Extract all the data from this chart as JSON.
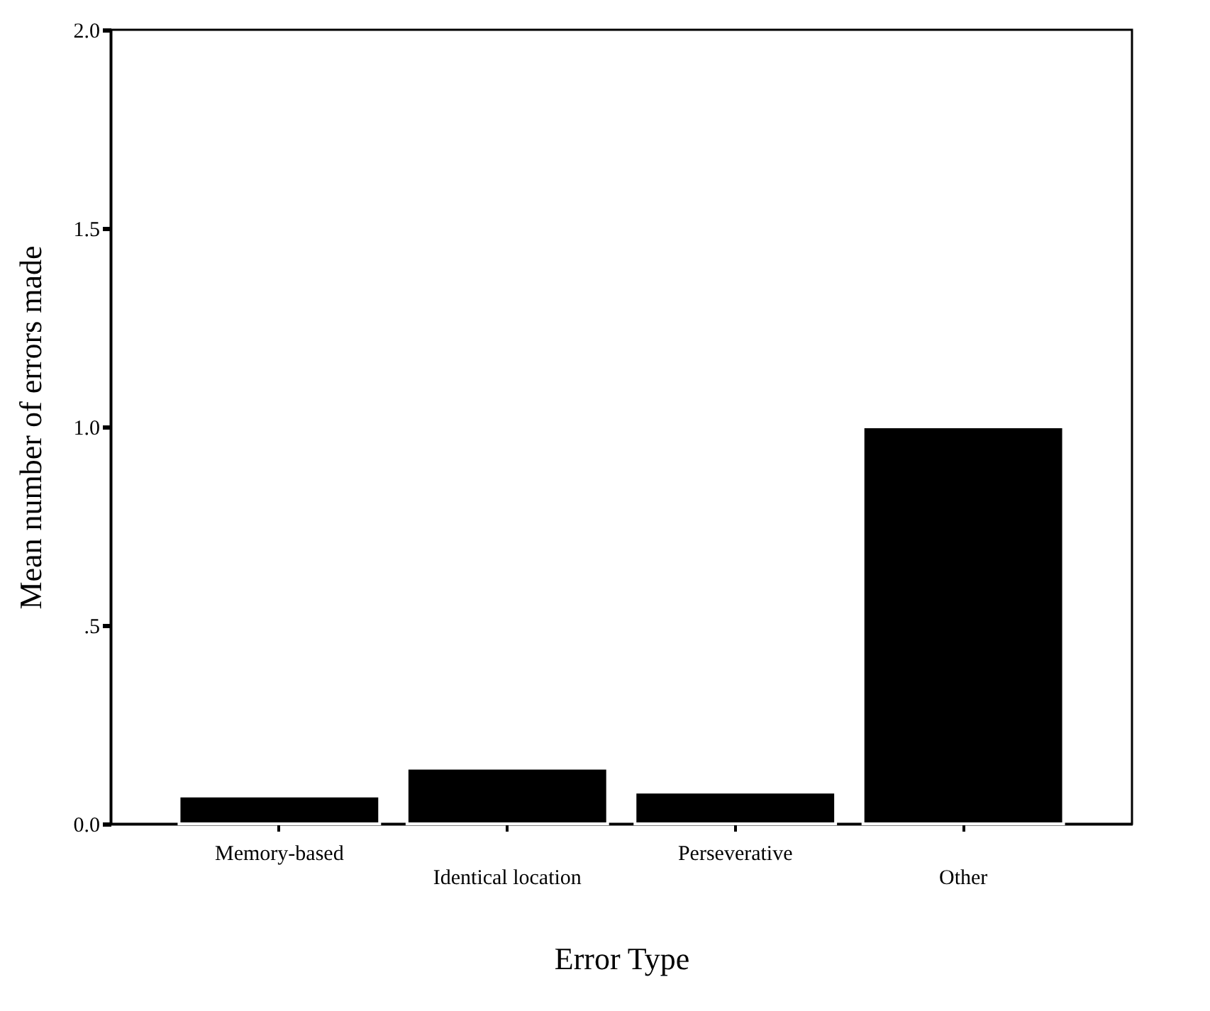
{
  "chart_data": {
    "type": "bar",
    "xlabel": "Error Type",
    "ylabel": "Mean number of errors made",
    "categories": [
      "Memory-based",
      "Identical location",
      "Perseverative",
      "Other"
    ],
    "values": [
      0.07,
      0.14,
      0.08,
      1.0
    ],
    "color": "#000000",
    "ylim": [
      0,
      2
    ],
    "yticks": [
      {
        "value": 0,
        "label": "0.0"
      },
      {
        "value": 0.5,
        "label": ".5"
      },
      {
        "value": 1,
        "label": "1.0"
      },
      {
        "value": 1.5,
        "label": "1.5"
      },
      {
        "value": 2,
        "label": "2.0"
      }
    ],
    "grid": false
  }
}
